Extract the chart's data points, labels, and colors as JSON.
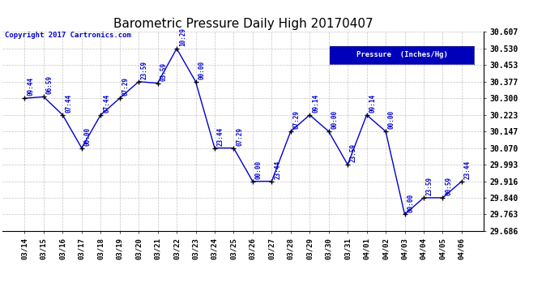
{
  "title": "Barometric Pressure Daily High 20170407",
  "copyright": "Copyright 2017 Cartronics.com",
  "legend_label": "Pressure  (Inches/Hg)",
  "dates": [
    "03/14",
    "03/15",
    "03/16",
    "03/17",
    "03/18",
    "03/19",
    "03/20",
    "03/21",
    "03/22",
    "03/23",
    "03/24",
    "03/25",
    "03/26",
    "03/27",
    "03/28",
    "03/29",
    "03/30",
    "03/31",
    "04/01",
    "04/02",
    "04/03",
    "04/04",
    "04/05",
    "04/06"
  ],
  "values": [
    30.3,
    30.307,
    30.223,
    30.07,
    30.223,
    30.3,
    30.377,
    30.37,
    30.53,
    30.377,
    30.07,
    30.07,
    29.916,
    29.916,
    30.147,
    30.223,
    30.147,
    29.993,
    30.223,
    30.147,
    29.763,
    29.84,
    29.84,
    29.916
  ],
  "annotations": [
    "09:44",
    "06:59",
    "07:44",
    "00:00",
    "07:44",
    "07:29",
    "23:59",
    "03:59",
    "10:29",
    "00:00",
    "23:44",
    "07:29",
    "00:00",
    "23:44",
    "07:29",
    "09:14",
    "00:00",
    "23:59",
    "09:14",
    "00:00",
    "00:00",
    "23:59",
    "00:59",
    "23:44"
  ],
  "ylim_min": 29.686,
  "ylim_max": 30.607,
  "yticks": [
    29.686,
    29.763,
    29.84,
    29.916,
    29.993,
    30.07,
    30.147,
    30.223,
    30.3,
    30.377,
    30.453,
    30.53,
    30.607
  ],
  "line_color": "#0000CC",
  "marker_color": "#000000",
  "bg_color": "#FFFFFF",
  "grid_color": "#AAAAAA",
  "annotation_color": "#0000CC",
  "legend_bg": "#0000BB",
  "legend_text_color": "#FFFFFF",
  "title_color": "#000000",
  "copyright_color": "#0000CC",
  "tick_label_color": "#000000",
  "xlabel_color": "#000000"
}
